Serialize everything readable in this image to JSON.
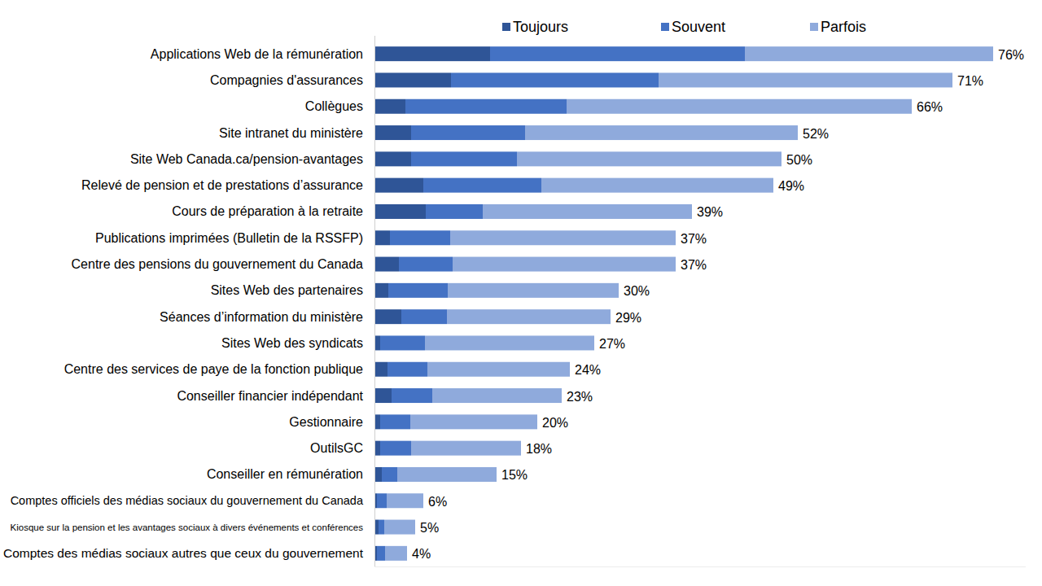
{
  "chart_data": {
    "type": "bar",
    "orientation": "horizontal",
    "stacked": true,
    "legend": "top",
    "tick_labels": "y",
    "grid": false,
    "xlim": [
      0,
      80
    ],
    "categories": [
      "Applications Web de la rémunération",
      "Compagnies d'assurances",
      "Collègues",
      "Site intranet du ministère",
      "Site Web Canada.ca/pension-avantages",
      "Relevé de pension et de prestations d’assurance",
      "Cours de préparation à la retraite",
      "Publications imprimées (Bulletin de la RSSFP)",
      "Centre des pensions du gouvernement du Canada",
      "Sites Web des partenaires",
      "Séances d’information du ministère",
      "Sites Web des syndicats",
      "Centre des services de paye de la fonction publique",
      "Conseiller financier indépendant",
      "Gestionnaire",
      "OutilsGC",
      "Conseiller en rémunération",
      "Comptes officiels des médias sociaux du gouvernement du Canada",
      "Kiosque sur la pension et les avantages sociaux à divers événements et conférences",
      "Comptes des médias sociaux autres que ceux du gouvernement"
    ],
    "series": [
      {
        "name": "Toujours",
        "color": "#2f5597",
        "values": [
          14.2,
          9.4,
          3.8,
          4.5,
          4.5,
          6.0,
          6.3,
          1.9,
          3.0,
          1.7,
          3.3,
          0.7,
          1.6,
          2.1,
          0.7,
          0.7,
          0.9,
          0.3,
          0.5,
          0.3
        ]
      },
      {
        "name": "Souvent",
        "color": "#4472c4",
        "values": [
          31.3,
          25.5,
          19.8,
          14.0,
          13.0,
          14.5,
          7.0,
          7.4,
          6.6,
          7.3,
          5.6,
          5.5,
          4.9,
          5.0,
          3.7,
          3.8,
          1.9,
          1.2,
          0.7,
          1.0
        ]
      },
      {
        "name": "Parfois",
        "color": "#8faadc",
        "values": [
          30.5,
          36.1,
          42.4,
          33.5,
          32.5,
          28.5,
          25.7,
          27.7,
          27.4,
          21.0,
          20.1,
          20.8,
          17.5,
          15.9,
          15.6,
          13.5,
          12.2,
          4.5,
          3.8,
          2.7
        ]
      }
    ],
    "totals": [
      76,
      71,
      66,
      52,
      50,
      49,
      39,
      37,
      37,
      30,
      29,
      27,
      24,
      23,
      20,
      18,
      15,
      6,
      5,
      4
    ],
    "total_labels": [
      "76%",
      "71%",
      "66%",
      "52%",
      "50%",
      "49%",
      "39%",
      "37%",
      "37%",
      "30%",
      "29%",
      "27%",
      "24%",
      "23%",
      "20%",
      "18%",
      "15%",
      "6%",
      "5%",
      "4%"
    ]
  }
}
